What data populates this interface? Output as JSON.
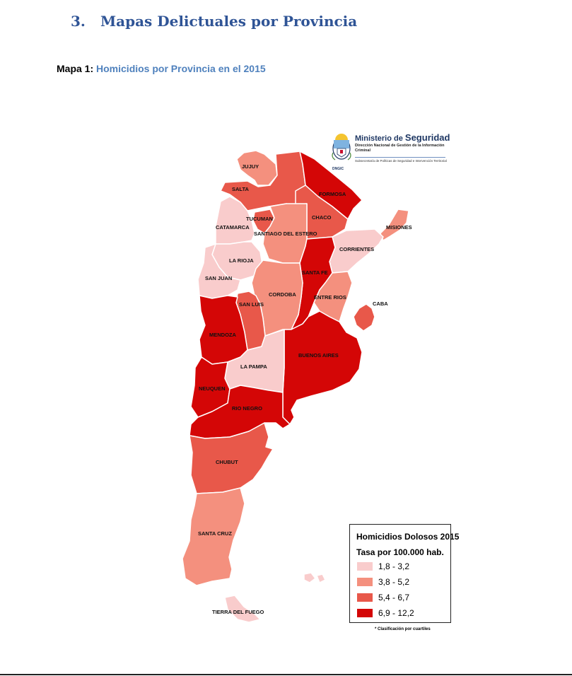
{
  "section": {
    "number": "3.",
    "title": "Mapas Delictuales por Provincia"
  },
  "caption": {
    "prefix": "Mapa 1:",
    "text": "Homicidios por Provincia en el 2015"
  },
  "ministry": {
    "name_prefix": "Ministerio de",
    "name_main": "Seguridad",
    "subtitle": "Dirección Nacional de Gestión de la Información Criminal",
    "subsecretaria": "Subsecretaría de Políticas de Seguridad e Intervención Territorial",
    "acronym": "DNGIC"
  },
  "legend": {
    "title": "Homicidios Dolosos 2015",
    "subtitle": "Tasa por 100.000 hab.",
    "classes": [
      {
        "range": "1,8 - 3,2",
        "color": "#f9cccc"
      },
      {
        "range": "3,8 - 5,2",
        "color": "#f4907e"
      },
      {
        "range": "5,4 - 6,7",
        "color": "#e8584a"
      },
      {
        "range": "6,9 - 12,2",
        "color": "#d40606"
      }
    ],
    "footnote": "* Clasificación por cuartiles"
  },
  "provinces": [
    {
      "name": "JUJUY",
      "class": 2
    },
    {
      "name": "SALTA",
      "class": 3
    },
    {
      "name": "FORMOSA",
      "class": 4
    },
    {
      "name": "TUCUMAN",
      "class": 3
    },
    {
      "name": "CHACO",
      "class": 3
    },
    {
      "name": "MISIONES",
      "class": 2
    },
    {
      "name": "CATAMARCA",
      "class": 1
    },
    {
      "name": "SANTIAGO DEL ESTERO",
      "class": 2
    },
    {
      "name": "CORRIENTES",
      "class": 1
    },
    {
      "name": "LA RIOJA",
      "class": 1
    },
    {
      "name": "SANTA FE",
      "class": 4
    },
    {
      "name": "SAN JUAN",
      "class": 1
    },
    {
      "name": "CORDOBA",
      "class": 2
    },
    {
      "name": "ENTRE RIOS",
      "class": 2
    },
    {
      "name": "CABA",
      "class": 3
    },
    {
      "name": "SAN LUIS",
      "class": 3
    },
    {
      "name": "MENDOZA",
      "class": 4
    },
    {
      "name": "BUENOS AIRES",
      "class": 4
    },
    {
      "name": "LA PAMPA",
      "class": 1
    },
    {
      "name": "NEUQUEN",
      "class": 4
    },
    {
      "name": "RIO NEGRO",
      "class": 4
    },
    {
      "name": "CHUBUT",
      "class": 3
    },
    {
      "name": "SANTA CRUZ",
      "class": 2
    },
    {
      "name": "TIERRA DEL FUEGO",
      "class": 1
    }
  ]
}
